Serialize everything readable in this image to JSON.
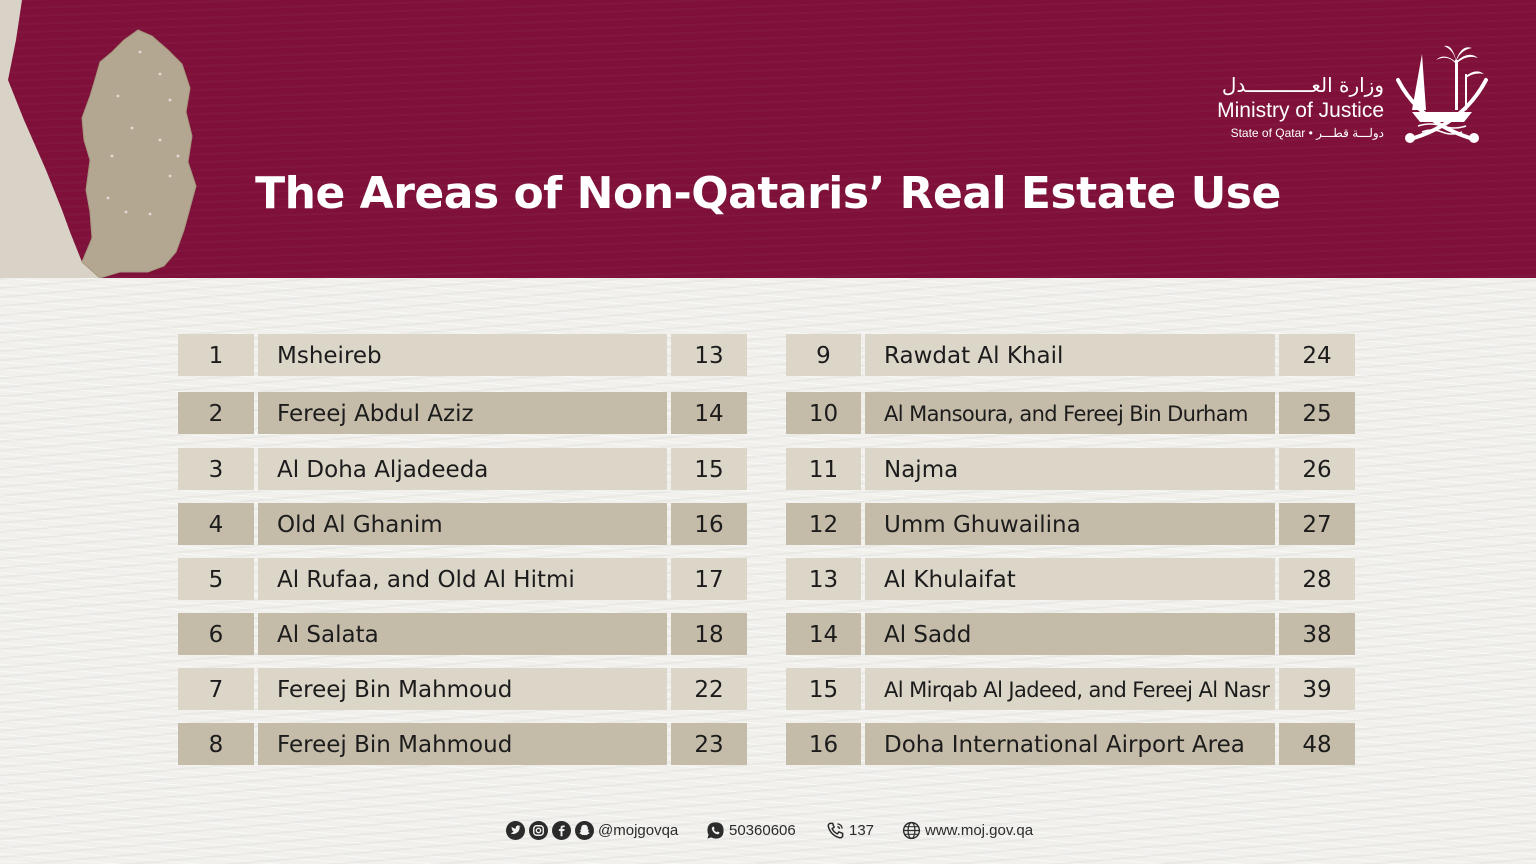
{
  "header": {
    "title": "The Areas of Non-Qataris’ Real Estate Use",
    "logo": {
      "arabic": "وزارة العـــــــــــدل",
      "english": "Ministry of Justice",
      "sub": "State of Qatar • دولـــة قطـــر"
    }
  },
  "colors": {
    "header_bg": "#7e1039",
    "row_light": "#dcd6c9",
    "row_dark": "#c5bba9",
    "map_land": "#b4a791"
  },
  "areas_left": [
    {
      "index": "1",
      "name": "Msheireb",
      "zone": "13"
    },
    {
      "index": "2",
      "name": "Fereej Abdul Aziz",
      "zone": "14"
    },
    {
      "index": "3",
      "name": "Al Doha Aljadeeda",
      "zone": "15"
    },
    {
      "index": "4",
      "name": "Old Al Ghanim",
      "zone": "16"
    },
    {
      "index": "5",
      "name": "Al Rufaa, and Old Al Hitmi",
      "zone": "17"
    },
    {
      "index": "6",
      "name": "Al Salata",
      "zone": "18"
    },
    {
      "index": "7",
      "name": "Fereej Bin Mahmoud",
      "zone": "22"
    },
    {
      "index": "8",
      "name": "Fereej Bin Mahmoud",
      "zone": "23"
    }
  ],
  "areas_right": [
    {
      "index": "9",
      "name": "Rawdat Al Khail",
      "zone": "24"
    },
    {
      "index": "10",
      "name": "Al Mansoura, and Fereej Bin Durham",
      "zone": "25"
    },
    {
      "index": "11",
      "name": "Najma",
      "zone": "26"
    },
    {
      "index": "12",
      "name": "Umm Ghuwailina",
      "zone": "27"
    },
    {
      "index": "13",
      "name": "Al Khulaifat",
      "zone": "28"
    },
    {
      "index": "14",
      "name": "Al Sadd",
      "zone": "38"
    },
    {
      "index": "15",
      "name": "Al Mirqab Al Jadeed, and Fereej Al Nasr",
      "zone": "39"
    },
    {
      "index": "16",
      "name": "Doha International Airport Area",
      "zone": "48"
    }
  ],
  "footer": {
    "social_handle": "@mojgovqa",
    "whatsapp": "50360606",
    "hotline": "137",
    "website": "www.moj.gov.qa",
    "icons": [
      "twitter-icon",
      "instagram-icon",
      "facebook-icon",
      "snapchat-icon",
      "whatsapp-icon",
      "phone-icon",
      "globe-icon"
    ]
  }
}
